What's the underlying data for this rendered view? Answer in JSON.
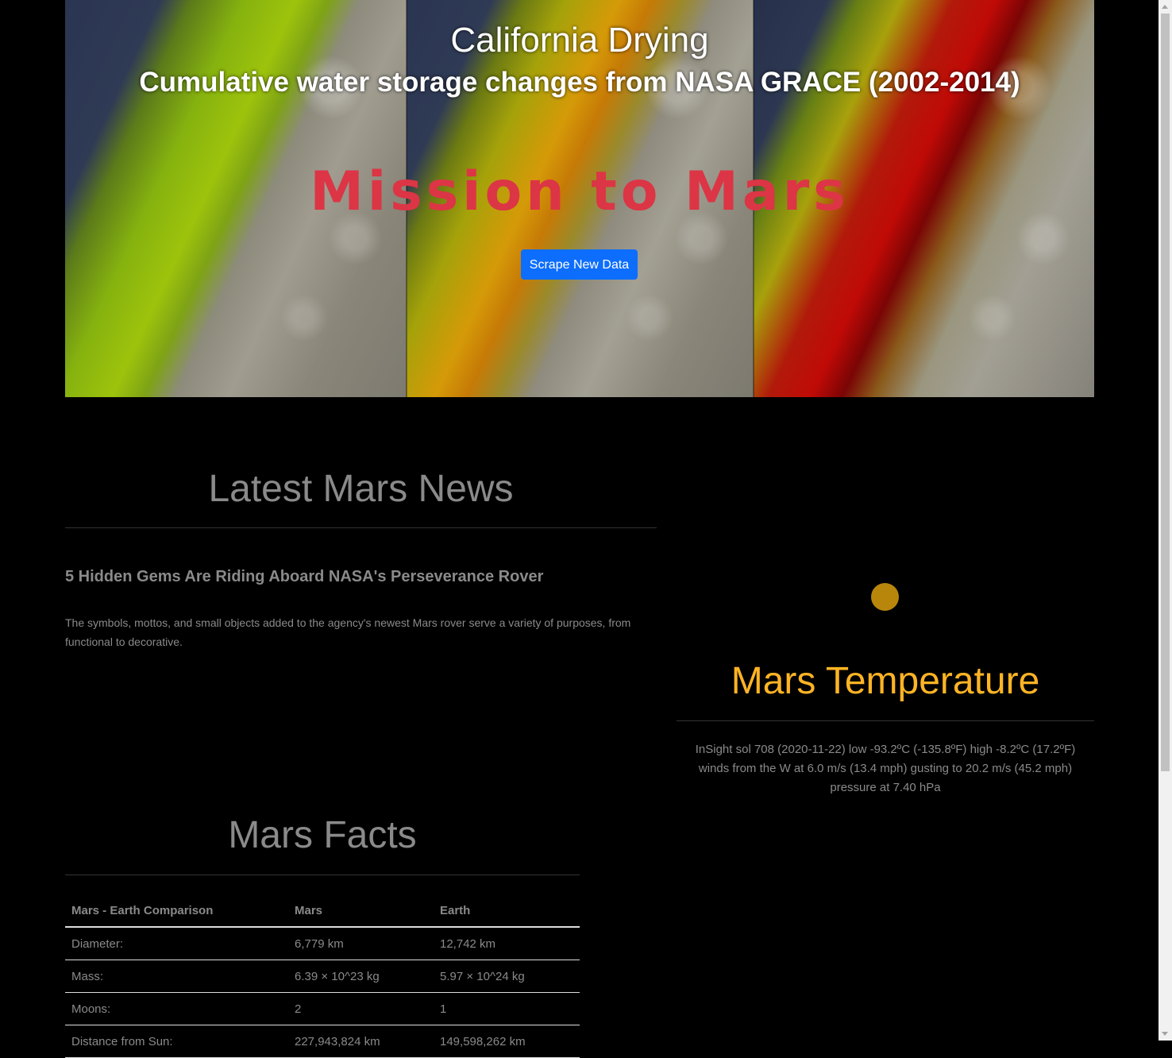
{
  "hero": {
    "image_title": "California Drying",
    "image_subtitle": "Cumulative water storage changes from NASA GRACE (2002-2014)",
    "heading": "Mission to Mars",
    "scrape_button_label": "Scrape New Data",
    "button_color": "#0d6efd",
    "heading_color": "#dc3545"
  },
  "news": {
    "section_title": "Latest Mars News",
    "headline": "5 Hidden Gems Are Riding Aboard NASA's Perseverance Rover",
    "teaser": "The symbols, mottos, and small objects added to the agency's newest Mars rover serve a variety of purposes, from functional to decorative."
  },
  "weather": {
    "icon": "mars-planet-icon",
    "section_title": "Mars Temperature",
    "line1": "InSight sol 708 (2020-11-22) low -93.2ºC (-135.8ºF) high -8.2ºC (17.2ºF)",
    "line2": "winds from the W at 6.0 m/s (13.4 mph) gusting to 20.2 m/s (45.2 mph)",
    "line3": "pressure at 7.40 hPa",
    "title_color": "#ffb424"
  },
  "facts": {
    "section_title": "Mars Facts",
    "headers": [
      "Mars - Earth Comparison",
      "Mars",
      "Earth"
    ],
    "rows": [
      [
        "Diameter:",
        "6,779 km",
        "12,742 km"
      ],
      [
        "Mass:",
        "6.39 × 10^23 kg",
        "5.97 × 10^24 kg"
      ],
      [
        "Moons:",
        "2",
        "1"
      ],
      [
        "Distance from Sun:",
        "227,943,824 km",
        "149,598,262 km"
      ]
    ]
  }
}
